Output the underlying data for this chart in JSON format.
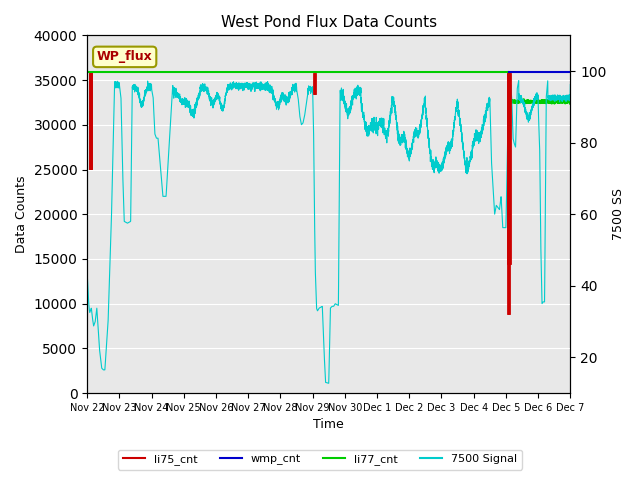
{
  "title": "West Pond Flux Data Counts",
  "xlabel": "Time",
  "ylabel_left": "Data Counts",
  "ylabel_right": "7500 SS",
  "ylim_left": [
    0,
    40000
  ],
  "ylim_right": [
    10,
    110
  ],
  "background_color": "#e8e8e8",
  "annotation_text": "WP_flux",
  "annotation_box_color": "#ffffcc",
  "annotation_border_color": "#999900",
  "annotation_text_color": "#aa0000",
  "xtick_labels": [
    "Nov 22",
    "Nov 23",
    "Nov 24",
    "Nov 25",
    "Nov 26",
    "Nov 27",
    "Nov 28",
    "Nov 29",
    "Nov 30",
    "Dec 1",
    "Dec 2",
    "Dec 3",
    "Dec 4",
    "Dec 5",
    "Dec 6",
    "Dec 7"
  ],
  "legend_labels": [
    "li75_cnt",
    "wmp_cnt",
    "li77_cnt",
    "7500 Signal"
  ],
  "legend_colors": [
    "#cc0000",
    "#0000cc",
    "#00cc00",
    "#00cccc"
  ]
}
